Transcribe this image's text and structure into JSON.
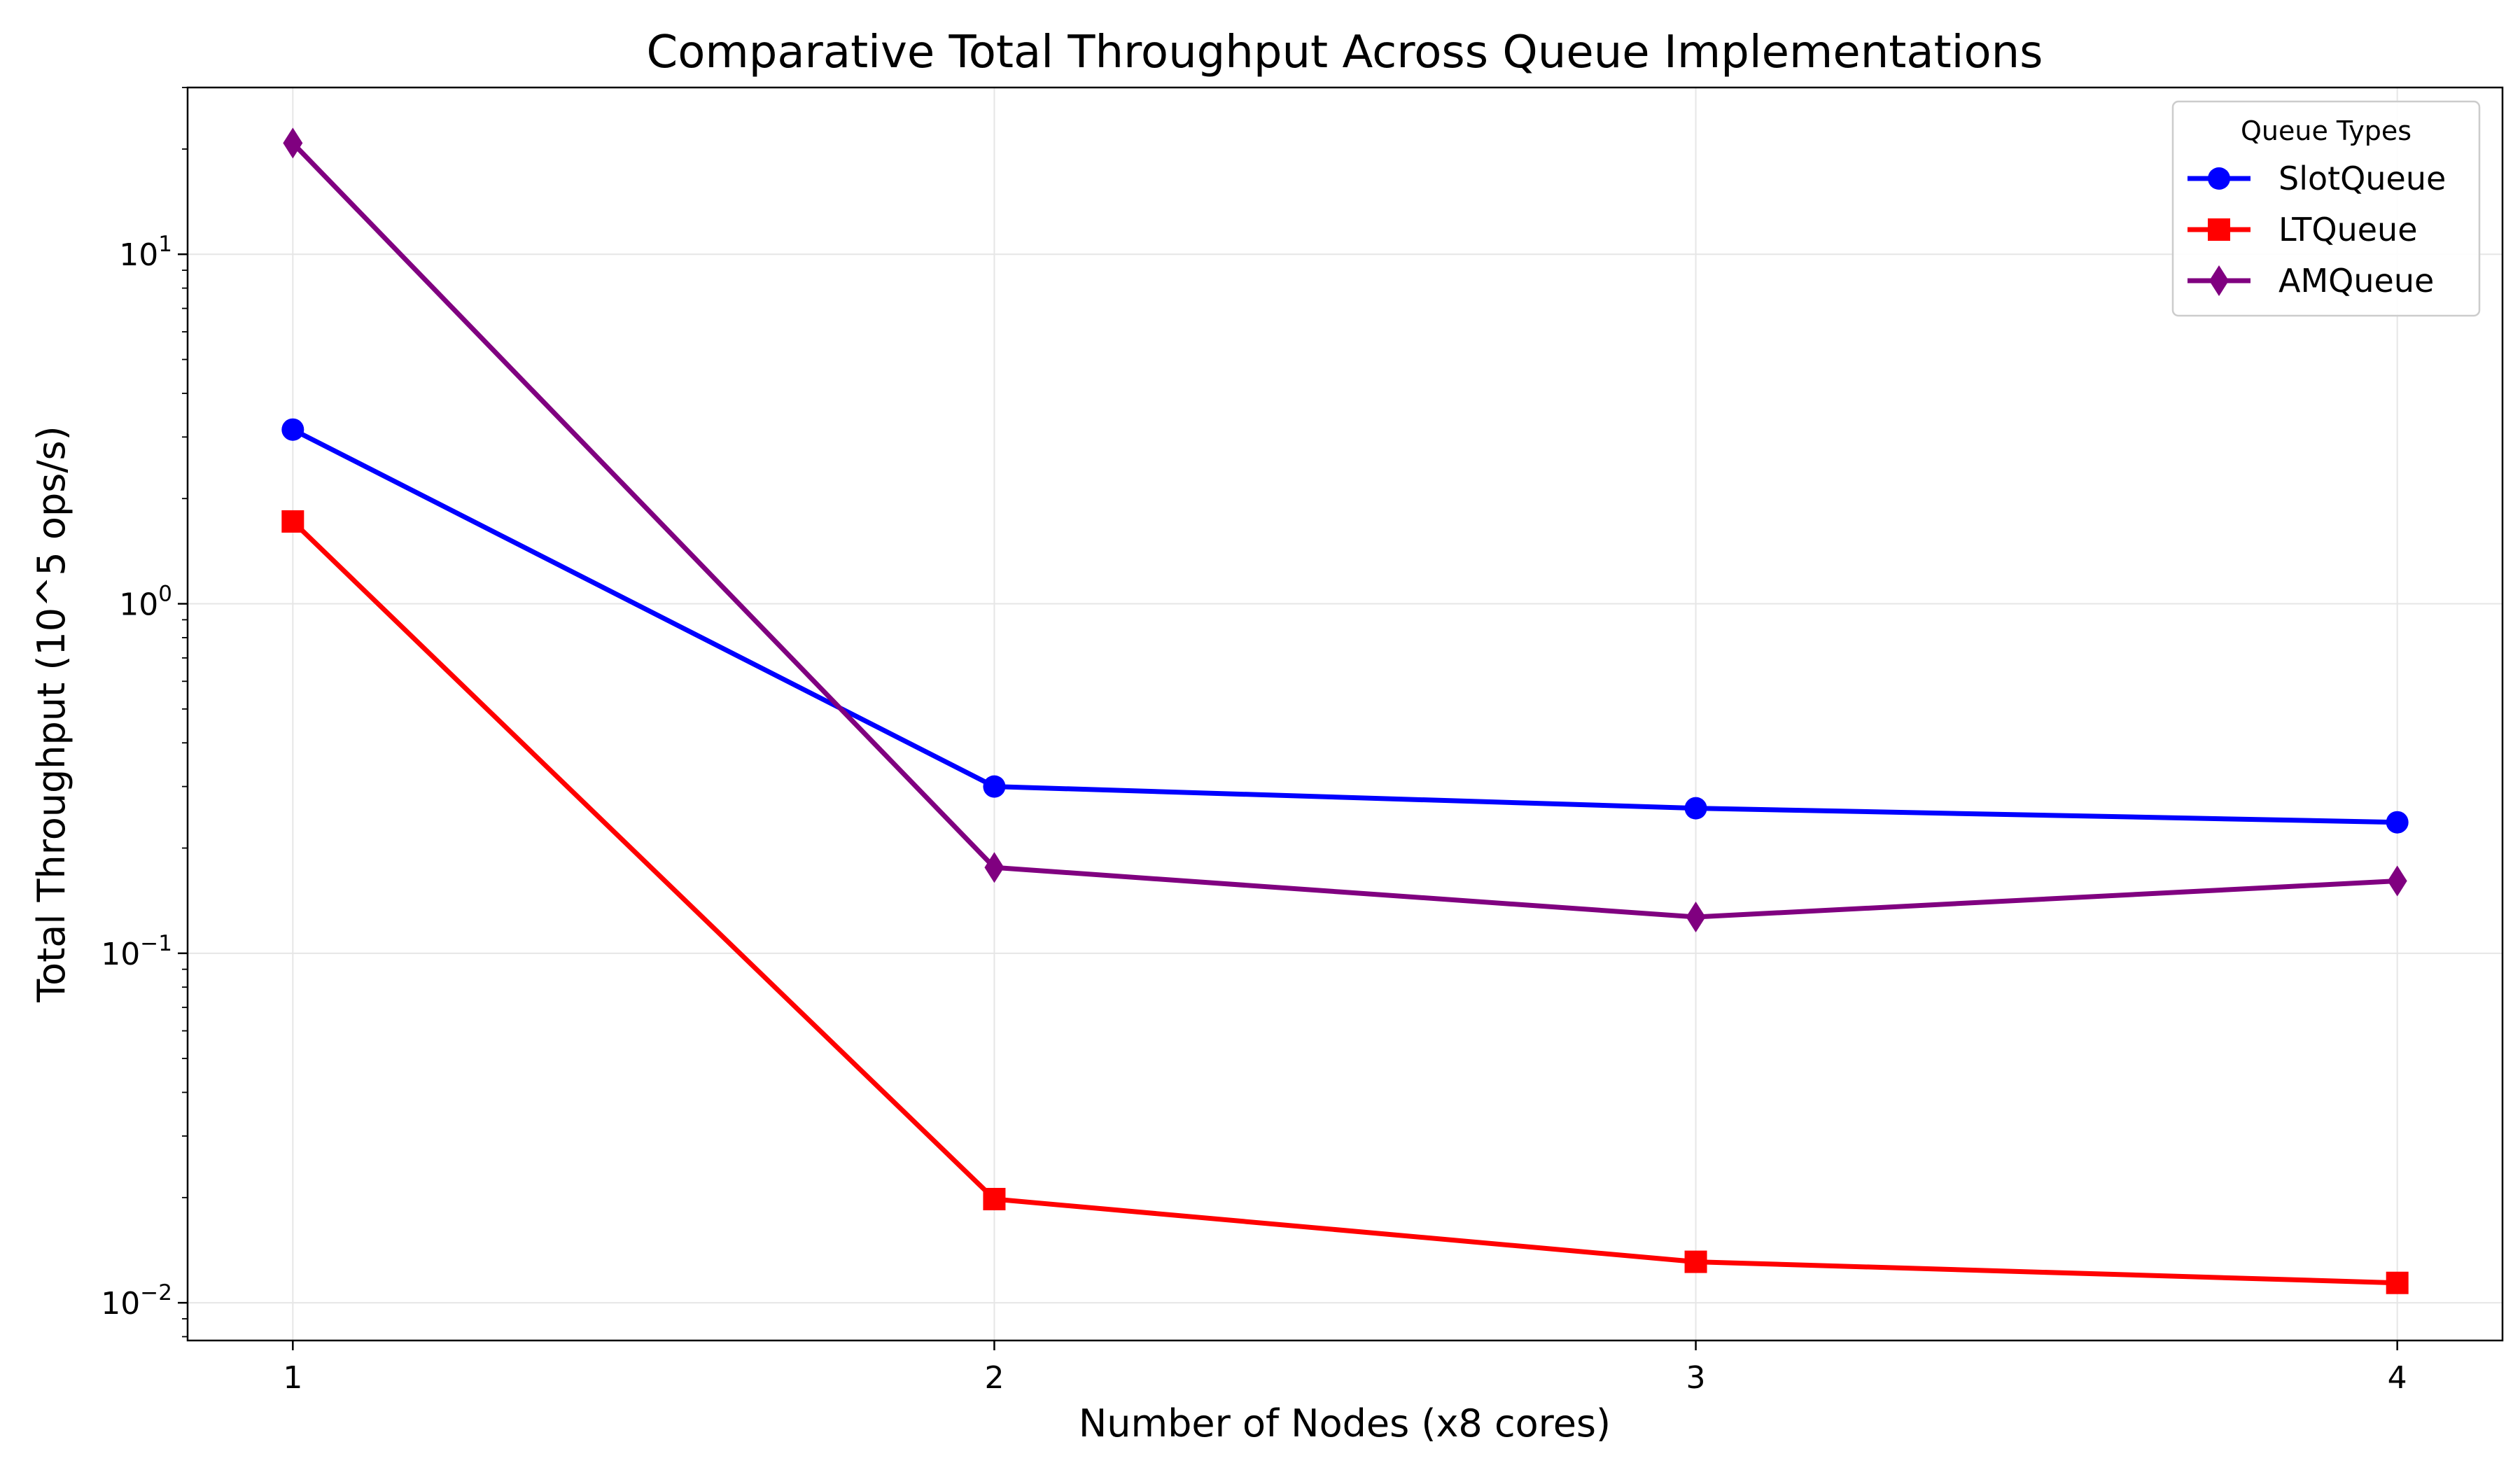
{
  "chart_data": {
    "type": "line",
    "title": "Comparative Total Throughput Across Queue Implementations",
    "xlabel": "Number of Nodes (x8 cores)",
    "ylabel": "Total Throughput (10^5 ops/s)",
    "x": [
      1,
      2,
      3,
      4
    ],
    "x_tick_labels": [
      "1",
      "2",
      "3",
      "4"
    ],
    "xlim": [
      0.85,
      4.15
    ],
    "yscale": "log",
    "ylim": [
      0.0078,
      30
    ],
    "y_ticks": [
      {
        "value": 0.01,
        "base": "10",
        "exp": "−2"
      },
      {
        "value": 0.1,
        "base": "10",
        "exp": "−1"
      },
      {
        "value": 1,
        "base": "10",
        "exp": "0"
      },
      {
        "value": 10,
        "base": "10",
        "exp": "1"
      }
    ],
    "grid": true,
    "legend": {
      "title": "Queue Types",
      "placement": "top-right"
    },
    "series": [
      {
        "name": "SlotQueue",
        "color": "#0000ff",
        "marker": "circle",
        "values": [
          3.15,
          0.3,
          0.26,
          0.237
        ]
      },
      {
        "name": "LTQueue",
        "color": "#ff0000",
        "marker": "square",
        "values": [
          1.72,
          0.0198,
          0.0131,
          0.0114
        ]
      },
      {
        "name": "AMQueue",
        "color": "#800080",
        "marker": "diamond",
        "values": [
          20.8,
          0.176,
          0.127,
          0.161
        ]
      }
    ]
  }
}
